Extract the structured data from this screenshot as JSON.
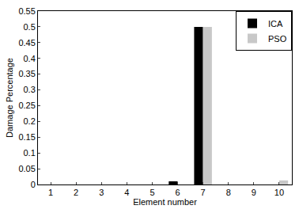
{
  "chart_data": {
    "type": "bar",
    "x_label": "Element number",
    "y_label": "Damage Percentage",
    "categories": [
      "1",
      "2",
      "3",
      "4",
      "5",
      "6",
      "7",
      "8",
      "9",
      "10"
    ],
    "series": [
      {
        "name": "ICA",
        "color": "#000000",
        "values": [
          0,
          0,
          0,
          0,
          0,
          0.01,
          0.5,
          0,
          0,
          0
        ]
      },
      {
        "name": "PSO",
        "color": "#c8c8c8",
        "values": [
          0,
          0,
          0,
          0,
          0,
          0,
          0.5,
          0,
          0,
          0.013
        ]
      }
    ],
    "ylim": [
      0,
      0.55
    ],
    "yticks": [
      0,
      0.05,
      0.1,
      0.15,
      0.2,
      0.25,
      0.3,
      0.35,
      0.4,
      0.45,
      0.5,
      0.55
    ],
    "grid": false,
    "legend": "upper right"
  }
}
